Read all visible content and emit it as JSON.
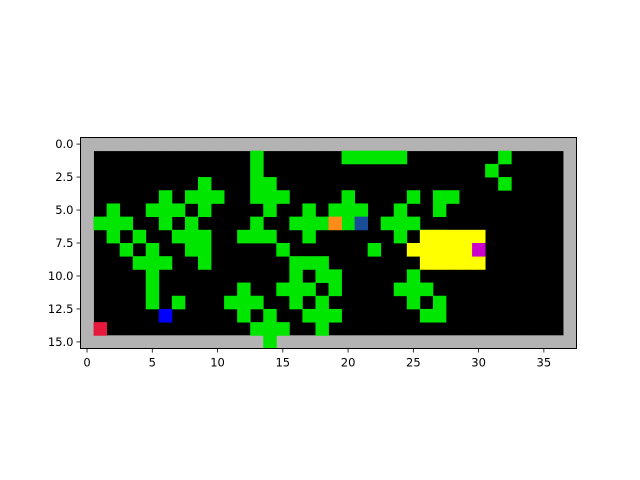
{
  "grid": {
    "width": 38,
    "height": 16,
    "background_color": "#000000",
    "colors": {
      "wall": "#b3b3b3",
      "plant": "#00e600",
      "zone": "#ffff00",
      "orange_agent": "#ff8c1a",
      "navy_agent": "#1a4d99",
      "magenta_agent": "#cc00cc",
      "blue_agent": "#0000ff",
      "red_agent": "#e6193c"
    },
    "plants": [
      [
        20,
        0
      ],
      [
        21,
        0
      ],
      [
        22,
        0
      ],
      [
        23,
        0
      ],
      [
        24,
        0
      ],
      [
        13,
        0
      ],
      [
        32,
        0
      ],
      [
        13,
        1
      ],
      [
        31,
        1
      ],
      [
        9,
        2
      ],
      [
        13,
        2
      ],
      [
        14,
        2
      ],
      [
        32,
        2
      ],
      [
        6,
        3
      ],
      [
        8,
        3
      ],
      [
        9,
        3
      ],
      [
        10,
        3
      ],
      [
        13,
        3
      ],
      [
        14,
        3
      ],
      [
        15,
        3
      ],
      [
        20,
        3
      ],
      [
        25,
        3
      ],
      [
        27,
        3
      ],
      [
        28,
        3
      ],
      [
        2,
        4
      ],
      [
        5,
        4
      ],
      [
        6,
        4
      ],
      [
        7,
        4
      ],
      [
        9,
        4
      ],
      [
        14,
        4
      ],
      [
        17,
        4
      ],
      [
        19,
        4
      ],
      [
        20,
        4
      ],
      [
        21,
        4
      ],
      [
        24,
        4
      ],
      [
        27,
        4
      ],
      [
        1,
        5
      ],
      [
        2,
        5
      ],
      [
        3,
        5
      ],
      [
        6,
        5
      ],
      [
        8,
        5
      ],
      [
        13,
        5
      ],
      [
        16,
        5
      ],
      [
        17,
        5
      ],
      [
        18,
        5
      ],
      [
        20,
        5
      ],
      [
        23,
        5
      ],
      [
        24,
        5
      ],
      [
        25,
        5
      ],
      [
        2,
        6
      ],
      [
        4,
        6
      ],
      [
        7,
        6
      ],
      [
        8,
        6
      ],
      [
        9,
        6
      ],
      [
        12,
        6
      ],
      [
        13,
        6
      ],
      [
        14,
        6
      ],
      [
        17,
        6
      ],
      [
        24,
        6
      ],
      [
        26,
        6
      ],
      [
        27,
        6
      ],
      [
        3,
        7
      ],
      [
        5,
        7
      ],
      [
        8,
        7
      ],
      [
        9,
        7
      ],
      [
        15,
        7
      ],
      [
        22,
        7
      ],
      [
        4,
        8
      ],
      [
        5,
        8
      ],
      [
        6,
        8
      ],
      [
        9,
        8
      ],
      [
        16,
        8
      ],
      [
        17,
        8
      ],
      [
        18,
        8
      ],
      [
        5,
        9
      ],
      [
        16,
        9
      ],
      [
        18,
        9
      ],
      [
        19,
        9
      ],
      [
        25,
        9
      ],
      [
        5,
        10
      ],
      [
        12,
        10
      ],
      [
        15,
        10
      ],
      [
        16,
        10
      ],
      [
        17,
        10
      ],
      [
        19,
        10
      ],
      [
        24,
        10
      ],
      [
        25,
        10
      ],
      [
        26,
        10
      ],
      [
        5,
        11
      ],
      [
        7,
        11
      ],
      [
        11,
        11
      ],
      [
        12,
        11
      ],
      [
        13,
        11
      ],
      [
        16,
        11
      ],
      [
        18,
        11
      ],
      [
        25,
        11
      ],
      [
        27,
        11
      ],
      [
        12,
        12
      ],
      [
        14,
        12
      ],
      [
        17,
        12
      ],
      [
        18,
        12
      ],
      [
        19,
        12
      ],
      [
        26,
        12
      ],
      [
        27,
        12
      ],
      [
        13,
        13
      ],
      [
        14,
        13
      ],
      [
        15,
        13
      ],
      [
        18,
        13
      ],
      [
        14,
        14
      ]
    ],
    "zones": [
      [
        26,
        7
      ],
      [
        27,
        7
      ],
      [
        28,
        7
      ],
      [
        29,
        7
      ],
      [
        30,
        7
      ],
      [
        25,
        8
      ],
      [
        26,
        8
      ],
      [
        27,
        8
      ],
      [
        28,
        8
      ],
      [
        29,
        8
      ],
      [
        26,
        9
      ],
      [
        27,
        9
      ],
      [
        28,
        9
      ],
      [
        29,
        9
      ],
      [
        30,
        9
      ]
    ],
    "agents": [
      {
        "name": "orange",
        "x": 19,
        "y": 6,
        "color_key": "orange_agent"
      },
      {
        "name": "navy",
        "x": 21,
        "y": 6,
        "color_key": "navy_agent"
      },
      {
        "name": "magenta",
        "x": 30,
        "y": 8,
        "color_key": "magenta_agent"
      },
      {
        "name": "blue",
        "x": 6,
        "y": 13,
        "color_key": "blue_agent"
      },
      {
        "name": "red",
        "x": 1,
        "y": 14,
        "color_key": "red_agent"
      }
    ]
  },
  "axes": {
    "x_ticks": [
      0,
      5,
      10,
      15,
      20,
      25,
      30,
      35
    ],
    "y_ticks": [
      0.0,
      2.5,
      5.0,
      7.5,
      10.0,
      12.5,
      15.0
    ],
    "x_tick_labels": [
      "0",
      "5",
      "10",
      "15",
      "20",
      "25",
      "30",
      "35"
    ],
    "y_tick_labels": [
      "0.0",
      "2.5",
      "5.0",
      "7.5",
      "10.0",
      "12.5",
      "15.0"
    ]
  }
}
